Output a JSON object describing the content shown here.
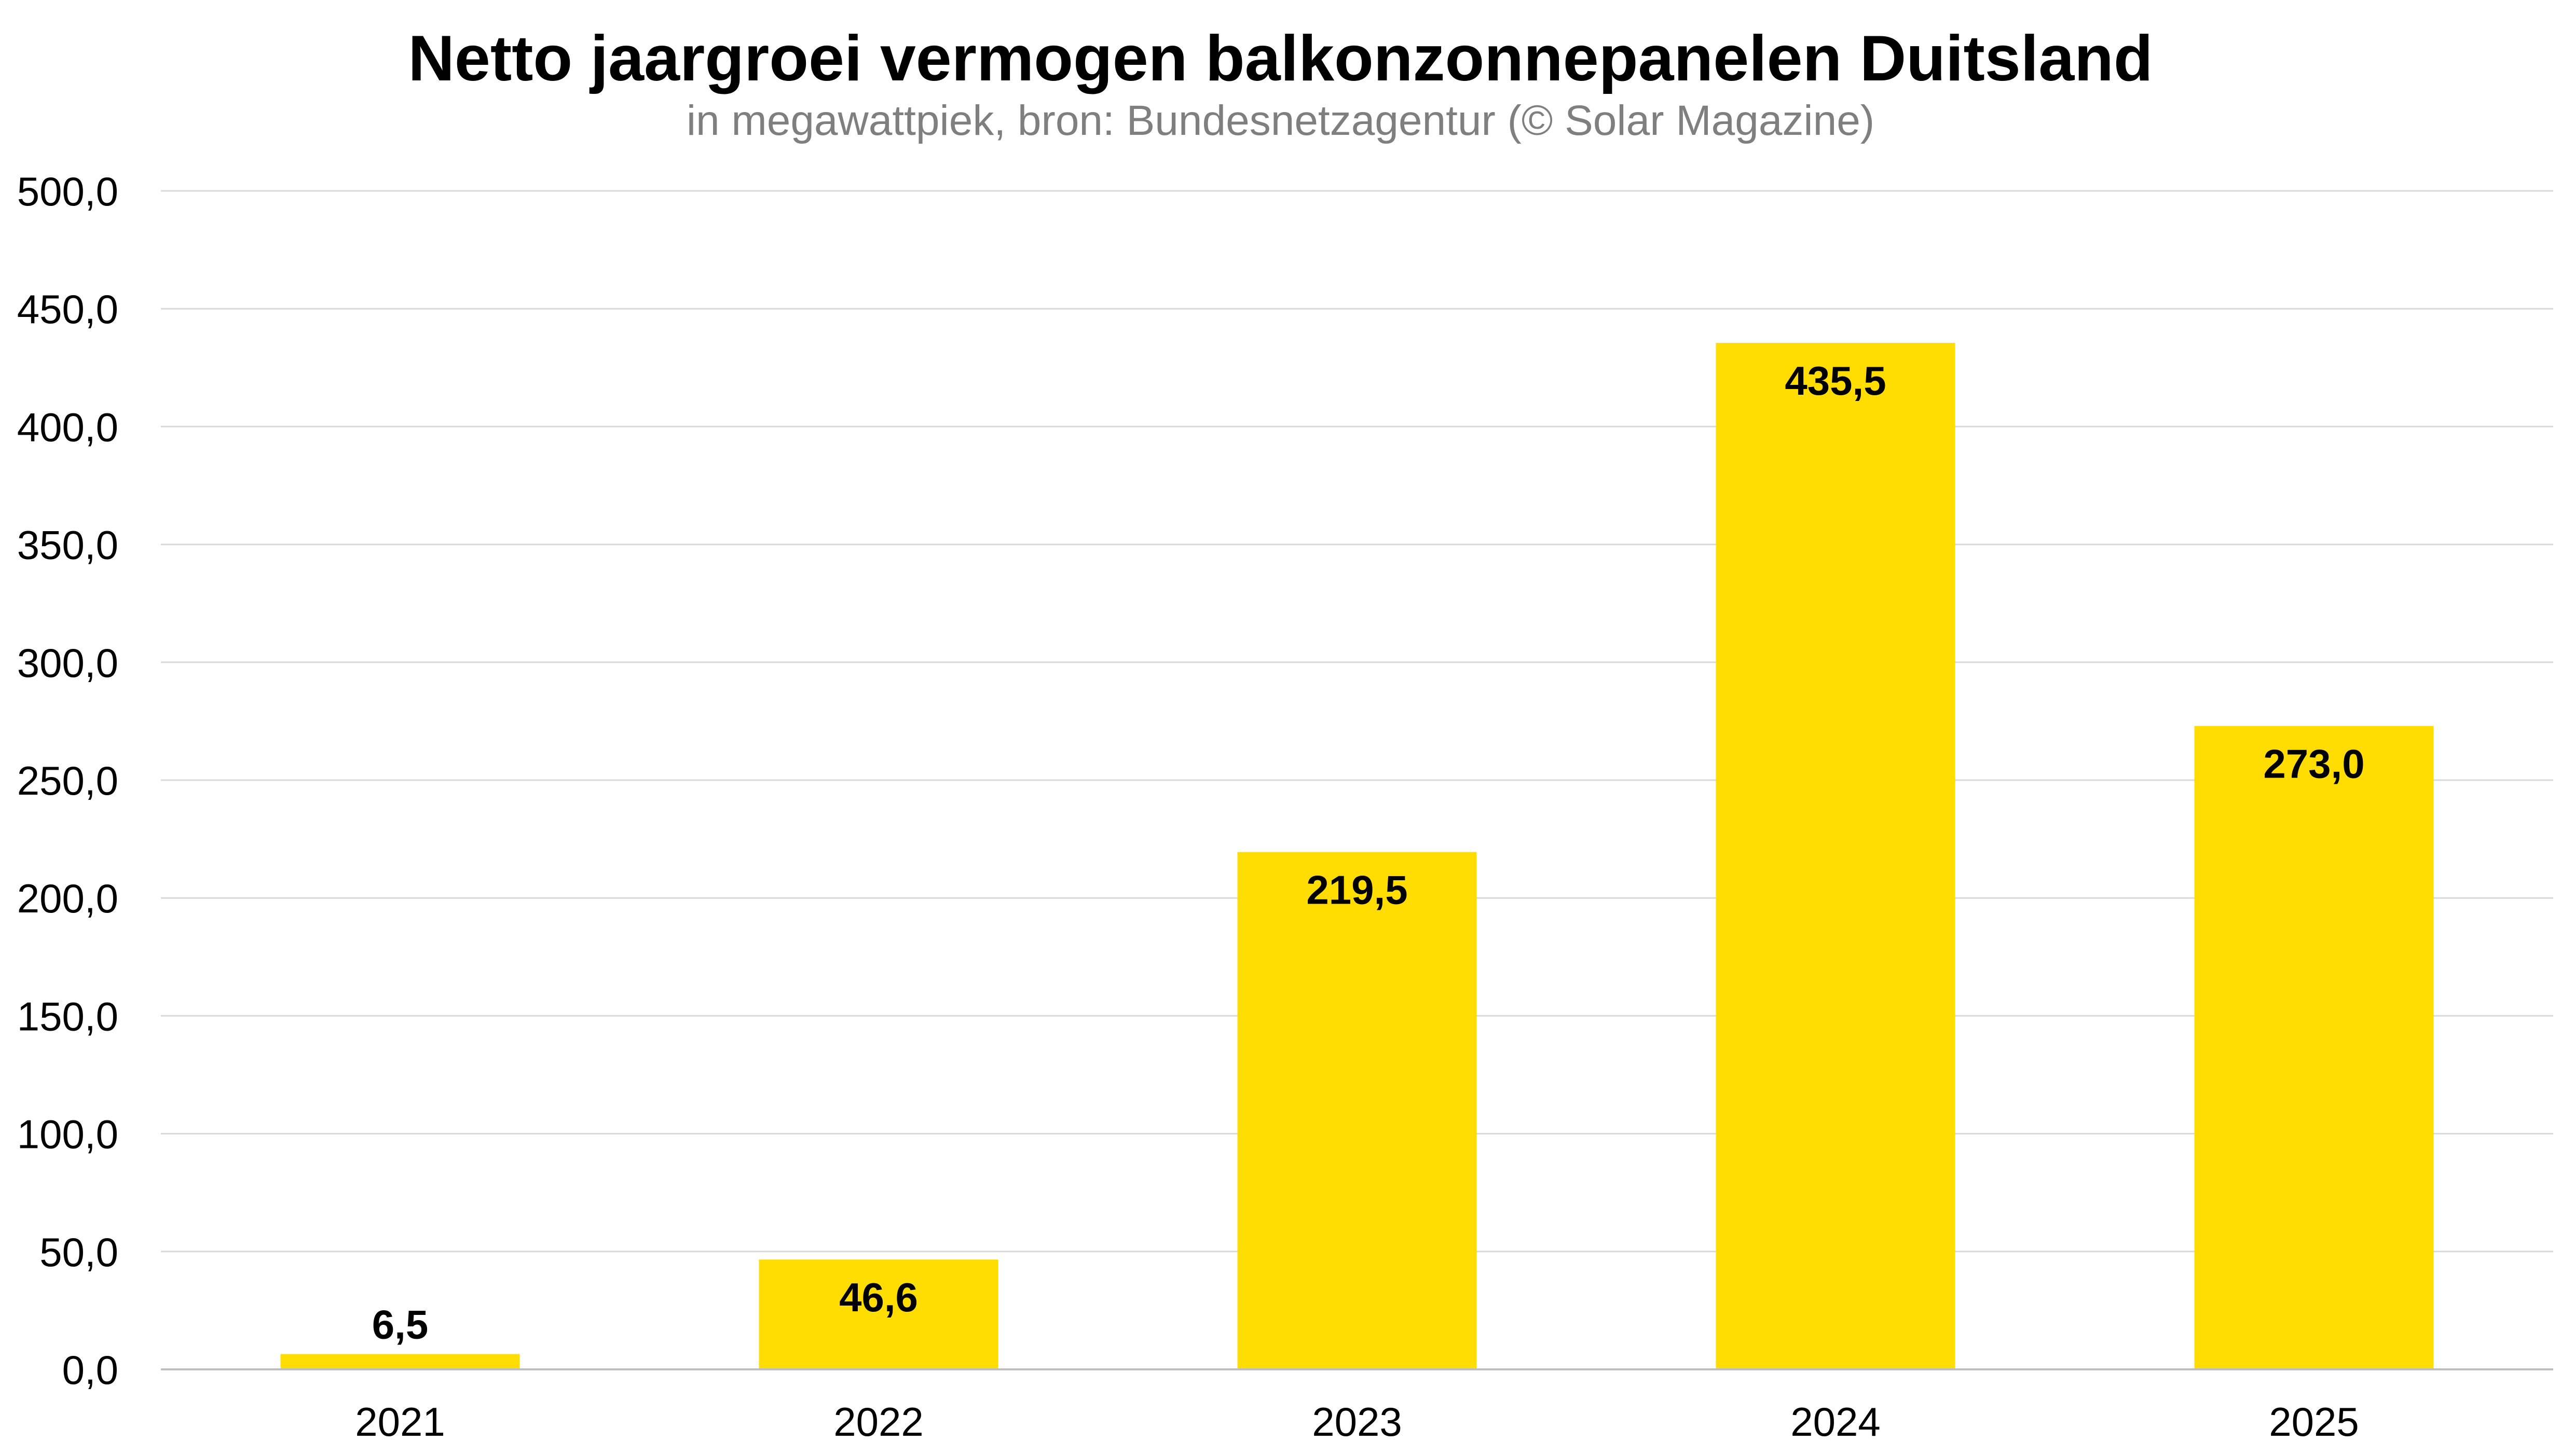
{
  "chart_data": {
    "type": "bar",
    "title": "Netto jaargroei vermogen balkonzonnepanelen Duitsland",
    "subtitle": "in megawattpiek, bron: Bundesnetzagentur (© Solar Magazine)",
    "categories": [
      "2021",
      "2022",
      "2023",
      "2024",
      "2025"
    ],
    "values": [
      6.5,
      46.6,
      219.5,
      435.5,
      273.0
    ],
    "data_labels": [
      "6,5",
      "46,6",
      "219,5",
      "435,5",
      "273,0"
    ],
    "y_tick_values": [
      0,
      50,
      100,
      150,
      200,
      250,
      300,
      350,
      400,
      450,
      500
    ],
    "y_tick_labels": [
      "0,0",
      "50,0",
      "100,0",
      "150,0",
      "200,0",
      "250,0",
      "300,0",
      "350,0",
      "400,0",
      "450,0",
      "500,0"
    ],
    "ylim": [
      0,
      500
    ],
    "xlabel": "",
    "ylabel": "",
    "grid": true,
    "legend": "none",
    "colors": {
      "bar": "#FFDD00",
      "grid": "#d9d9d9",
      "axis": "#bfbfbf",
      "text": "#000000",
      "subtitle": "#7f7f7f"
    }
  }
}
